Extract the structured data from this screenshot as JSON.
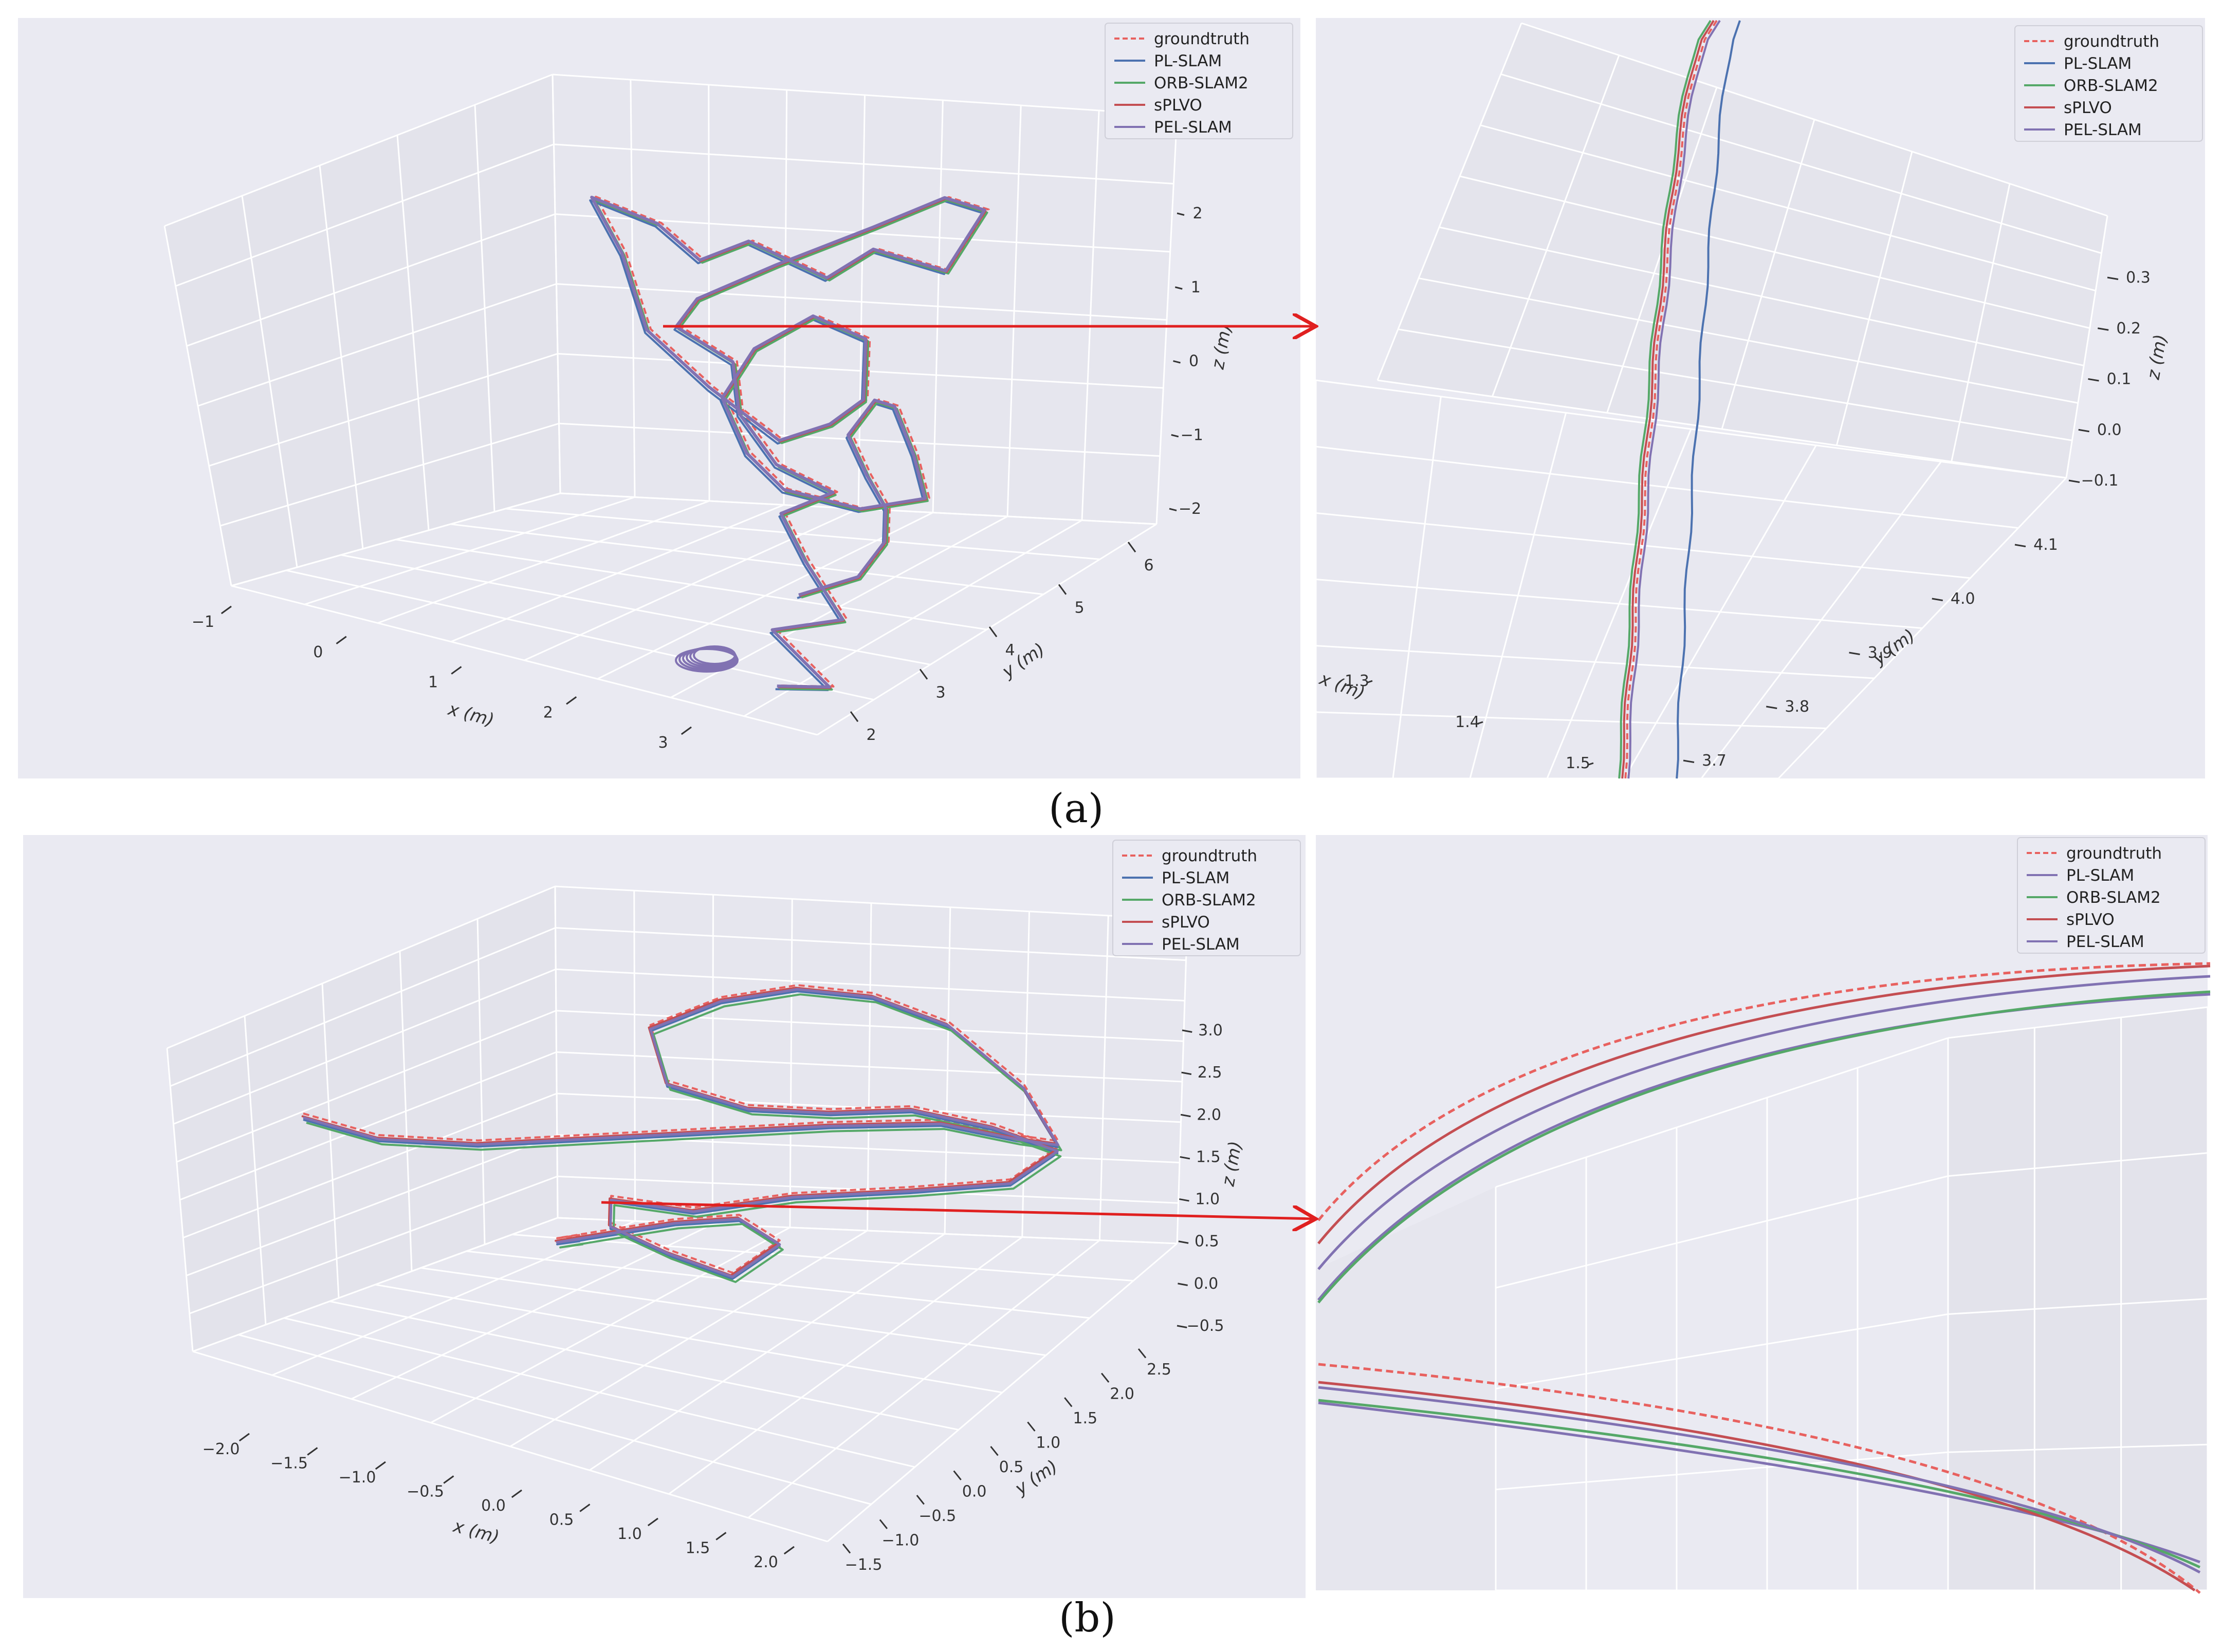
{
  "figure": {
    "captions": [
      "(a)",
      "(b)"
    ]
  },
  "chart_data": [
    {
      "id": "a-overview",
      "type": "line",
      "projection": "3d",
      "legend": {
        "placement": "top-right",
        "entries": [
          "groundtruth",
          "PL-SLAM",
          "ORB-SLAM2",
          "sPLVO",
          "PEL-SLAM"
        ]
      },
      "series": [
        {
          "name": "groundtruth",
          "color": "#e8615f",
          "dashed": true
        },
        {
          "name": "PL-SLAM",
          "color": "#4c72b0",
          "dashed": false
        },
        {
          "name": "ORB-SLAM2",
          "color": "#55a868",
          "dashed": false
        },
        {
          "name": "sPLVO",
          "color": "#c44e52",
          "dashed": false
        },
        {
          "name": "PEL-SLAM",
          "color": "#8172b2",
          "dashed": false
        }
      ],
      "trajectory": {
        "x": [
          2.6,
          2.9,
          2.4,
          2.9,
          2.5,
          2.2,
          2.5,
          2.0,
          1.6,
          1.5,
          1.0,
          1.0,
          1.4,
          2.0,
          2.4,
          2.6,
          2.4,
          2.0,
          1.8,
          1.3,
          0.8,
          0.3,
          -0.1,
          0.3,
          0.6,
          1.2,
          1.8,
          2.2,
          2.3,
          2.1,
          1.8,
          1.5,
          1.3,
          1.6,
          2.0,
          2.6,
          3.0,
          2.8,
          2.6,
          2.5,
          2.4,
          2.6,
          2.8,
          2.9,
          2.8,
          2.5
        ],
        "y": [
          3.0,
          3.2,
          3.3,
          3.4,
          3.6,
          3.8,
          4.0,
          4.1,
          4.3,
          4.4,
          4.5,
          4.8,
          5.2,
          5.5,
          5.8,
          6.0,
          5.8,
          5.5,
          5.2,
          5.0,
          5.2,
          5.5,
          5.3,
          5.0,
          4.8,
          4.6,
          4.5,
          4.5,
          4.8,
          5.2,
          5.0,
          4.7,
          4.6,
          4.4,
          4.2,
          4.2,
          4.4,
          4.6,
          4.7,
          4.6,
          4.4,
          4.3,
          4.2,
          4.0,
          3.8,
          3.5
        ],
        "z": [
          -2.3,
          -2.3,
          -1.8,
          -1.5,
          -1.0,
          -0.6,
          -0.3,
          -0.2,
          0.2,
          0.8,
          1.0,
          1.2,
          1.6,
          2.2,
          2.6,
          2.4,
          1.6,
          1.9,
          1.6,
          2.0,
          1.4,
          1.5,
          1.8,
          1.4,
          0.6,
          0.2,
          -0.2,
          0.2,
          0.4,
          0.9,
          1.2,
          0.8,
          0.1,
          -0.4,
          -0.6,
          -0.6,
          -0.4,
          0.0,
          0.5,
          0.6,
          0.2,
          -0.2,
          -0.5,
          -0.8,
          -1.2,
          -1.4
        ]
      },
      "axes": {
        "x": {
          "label": "x (m)",
          "ticks": [
            "−1",
            "0",
            "1",
            "2",
            "3"
          ],
          "range": [
            -1.2,
            3.4
          ]
        },
        "y": {
          "label": "y (m)",
          "ticks": [
            "2",
            "3",
            "4",
            "5",
            "6"
          ],
          "range": [
            1.6,
            6.4
          ]
        },
        "z": {
          "label": "z (m)",
          "ticks": [
            "−2",
            "−1",
            "0",
            "1",
            "2"
          ],
          "range": [
            -2.6,
            2.8
          ]
        }
      },
      "grid": true
    },
    {
      "id": "a-zoom",
      "type": "line",
      "projection": "3d",
      "legend": {
        "placement": "top-right",
        "entries": [
          "groundtruth",
          "PL-SLAM",
          "ORB-SLAM2",
          "sPLVO",
          "PEL-SLAM"
        ]
      },
      "series": [
        {
          "name": "groundtruth",
          "color": "#e8615f",
          "dashed": true
        },
        {
          "name": "PL-SLAM",
          "color": "#4c72b0",
          "dashed": false
        },
        {
          "name": "ORB-SLAM2",
          "color": "#55a868",
          "dashed": false
        },
        {
          "name": "sPLVO",
          "color": "#c44e52",
          "dashed": false
        },
        {
          "name": "PEL-SLAM",
          "color": "#8172b2",
          "dashed": false
        }
      ],
      "axes": {
        "x": {
          "label": "x (m)",
          "ticks": [
            "1.3",
            "1.4",
            "1.5"
          ]
        },
        "y": {
          "label": "y (m)",
          "ticks": [
            "3.7",
            "3.8",
            "3.9",
            "4.0",
            "4.1"
          ]
        },
        "z": {
          "label": "z (m)",
          "ticks": [
            "−0.1",
            "0.0",
            "0.1",
            "0.2",
            "0.3"
          ]
        }
      },
      "grid": true
    },
    {
      "id": "b-overview",
      "type": "line",
      "projection": "3d",
      "legend": {
        "placement": "top-right",
        "entries": [
          "groundtruth",
          "PL-SLAM",
          "ORB-SLAM2",
          "sPLVO",
          "PEL-SLAM"
        ]
      },
      "series": [
        {
          "name": "groundtruth",
          "color": "#e8615f",
          "dashed": true
        },
        {
          "name": "PL-SLAM",
          "color": "#4c72b0",
          "dashed": false
        },
        {
          "name": "ORB-SLAM2",
          "color": "#55a868",
          "dashed": false
        },
        {
          "name": "sPLVO",
          "color": "#c44e52",
          "dashed": false
        },
        {
          "name": "PEL-SLAM",
          "color": "#8172b2",
          "dashed": false
        }
      ],
      "trajectory": {
        "x": [
          -2.3,
          -1.8,
          -1.2,
          -0.6,
          0.0,
          0.6,
          1.2,
          1.6,
          1.8,
          1.5,
          1.0,
          0.5,
          0.0,
          -0.4,
          -0.7,
          -0.5,
          0.0,
          0.5,
          1.0,
          1.5,
          1.9,
          1.7,
          1.2,
          0.6,
          0.1,
          -0.3,
          -0.2,
          0.2,
          0.6,
          0.8,
          0.5,
          0.1,
          -0.2,
          -0.4,
          -0.2
        ],
        "y": [
          0.5,
          0.3,
          0.2,
          0.4,
          0.6,
          0.8,
          0.9,
          1.0,
          1.1,
          1.4,
          1.6,
          1.8,
          2.0,
          1.9,
          1.6,
          1.3,
          1.2,
          1.1,
          1.0,
          0.9,
          0.8,
          0.6,
          0.4,
          0.2,
          0.0,
          -0.2,
          -0.5,
          -0.7,
          -0.8,
          -0.6,
          -0.4,
          -0.3,
          -0.5,
          -0.8,
          -1.0
        ],
        "z": [
          0.8,
          0.7,
          0.8,
          0.9,
          1.0,
          1.1,
          1.2,
          1.0,
          0.9,
          1.5,
          2.2,
          2.4,
          2.3,
          2.1,
          1.8,
          1.2,
          1.0,
          1.1,
          1.3,
          1.2,
          1.0,
          0.6,
          0.5,
          0.4,
          0.2,
          0.4,
          0.2,
          0.0,
          -0.2,
          0.2,
          0.4,
          0.2,
          0.1,
          0.1,
          0.3
        ]
      },
      "axes": {
        "x": {
          "label": "x (m)",
          "ticks": [
            "−2.0",
            "−1.5",
            "−1.0",
            "−0.5",
            "0.0",
            "0.5",
            "1.0",
            "1.5",
            "2.0"
          ],
          "range": [
            -2.3,
            2.1
          ]
        },
        "y": {
          "label": "y (m)",
          "ticks": [
            "−1.5",
            "−1.0",
            "−0.5",
            "0.0",
            "0.5",
            "1.0",
            "1.5",
            "2.0",
            "2.5"
          ],
          "range": [
            -1.7,
            2.7
          ]
        },
        "z": {
          "label": "z (m)",
          "ticks": [
            "−0.5",
            "0.0",
            "0.5",
            "1.0",
            "1.5",
            "2.0",
            "2.5",
            "3.0"
          ],
          "range": [
            -0.7,
            3.2
          ]
        }
      },
      "grid": true
    },
    {
      "id": "b-zoom",
      "type": "line",
      "projection": "3d",
      "legend": {
        "placement": "top-right",
        "entries": [
          "groundtruth",
          "PL-SLAM",
          "ORB-SLAM2",
          "sPLVO",
          "PEL-SLAM"
        ]
      },
      "series": [
        {
          "name": "groundtruth",
          "color": "#e8615f",
          "dashed": true
        },
        {
          "name": "PL-SLAM",
          "color": "#8172b2",
          "dashed": false
        },
        {
          "name": "ORB-SLAM2",
          "color": "#55a868",
          "dashed": false
        },
        {
          "name": "sPLVO",
          "color": "#c44e52",
          "dashed": false
        },
        {
          "name": "PEL-SLAM",
          "color": "#8172b2",
          "dashed": false
        }
      ],
      "grid": true
    }
  ]
}
